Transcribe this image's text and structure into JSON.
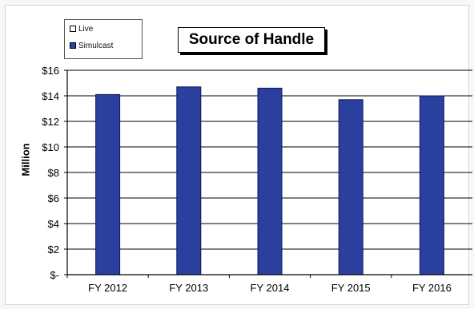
{
  "chart_data": {
    "type": "bar",
    "title": "Source of Handle",
    "xlabel": "",
    "ylabel": "Million",
    "categories": [
      "FY 2012",
      "FY 2013",
      "FY 2014",
      "FY 2015",
      "FY 2016"
    ],
    "series": [
      {
        "name": "Live",
        "color": "#ffffff",
        "values": [
          0,
          0,
          0,
          0,
          0
        ]
      },
      {
        "name": "Simulcast",
        "color": "#2b3f9e",
        "values": [
          14.1,
          14.7,
          14.6,
          13.7,
          14.0
        ]
      }
    ],
    "ylim": [
      0,
      16
    ],
    "yticks": [
      0,
      2,
      4,
      6,
      8,
      10,
      12,
      14,
      16
    ],
    "ytick_labels": [
      "$-",
      "$2",
      "$4",
      "$6",
      "$8",
      "$10",
      "$12",
      "$14",
      "$16"
    ],
    "grid": true,
    "legend_position": "top-left"
  }
}
